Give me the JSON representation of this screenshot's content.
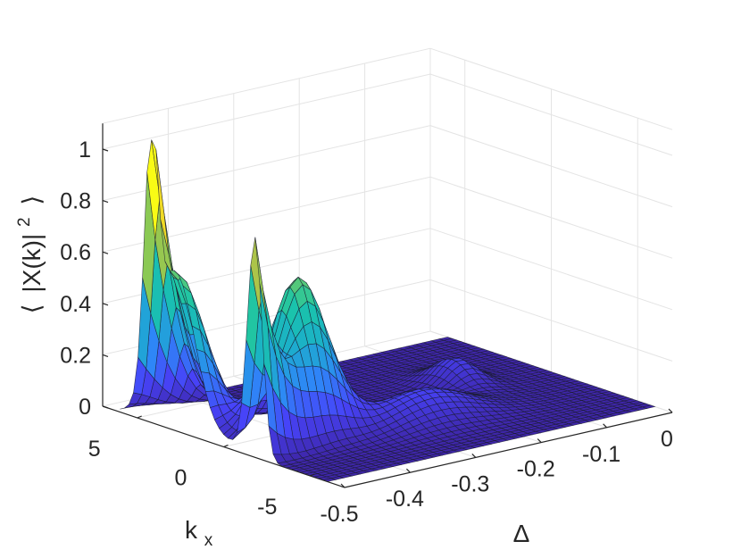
{
  "chart_data": {
    "type": "surface",
    "title": "",
    "xlabel": "Δ",
    "ylabel_main": "k",
    "ylabel_sub": "x",
    "zlabel_open": "⟨",
    "zlabel_body": "|X(k)|",
    "zlabel_sup": "2",
    "zlabel_close": "⟩",
    "xlim": [
      -0.5,
      0
    ],
    "ylim": [
      -7,
      7
    ],
    "zlim": [
      0,
      1.1
    ],
    "grid": true,
    "colormap": "parula",
    "x_ticks": [
      "-0.5",
      "-0.4",
      "-0.3",
      "-0.2",
      "-0.1",
      "0"
    ],
    "y_ticks": [
      "5",
      "0",
      "-5"
    ],
    "z_ticks": [
      "0",
      "0.2",
      "0.4",
      "0.6",
      "0.8",
      "1"
    ],
    "x_tick_values": [
      -0.5,
      -0.4,
      -0.3,
      -0.2,
      -0.1,
      0
    ],
    "y_tick_values": [
      5,
      0,
      -5
    ],
    "z_tick_values": [
      0,
      0.2,
      0.4,
      0.6,
      0.8,
      1
    ],
    "peaks": [
      {
        "delta": -0.5,
        "k": 4.2,
        "value": 0.9
      },
      {
        "delta": -0.5,
        "k": -1.8,
        "value": 0.85
      },
      {
        "delta": -0.4,
        "k": -0.5,
        "value": 0.61
      },
      {
        "delta": -0.25,
        "k": -2.0,
        "value": 0.12
      },
      {
        "delta": -0.12,
        "k": 1.0,
        "value": 0.1
      }
    ],
    "colormap_stops": [
      "#3e26a8",
      "#4743f8",
      "#2e87f7",
      "#1bb0c9",
      "#1ac5a8",
      "#80cb58",
      "#e5bb36",
      "#f9fb15"
    ]
  }
}
